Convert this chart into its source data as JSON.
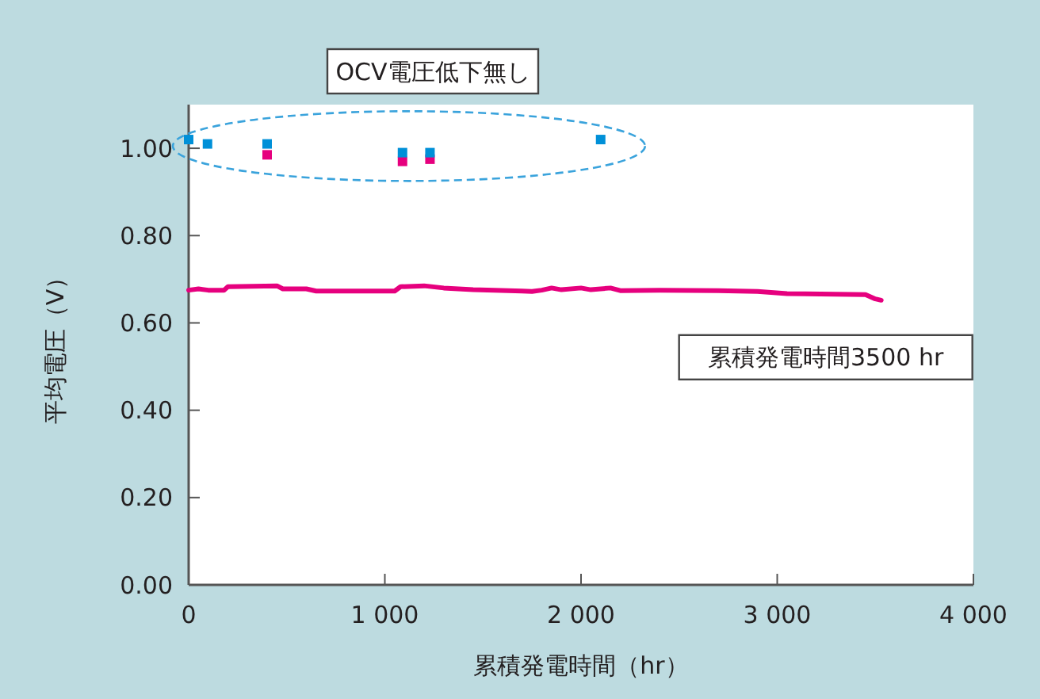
{
  "chart_data": {
    "type": "line",
    "xlabel": "累積発電時間（hr）",
    "ylabel": "平均電圧（V）",
    "xlim": [
      0,
      4000
    ],
    "xticks": [
      0,
      {
        "value": 1000,
        "label": "1 000"
      },
      {
        "value": 2000,
        "label": "2 000"
      },
      {
        "value": 3000,
        "label": "3 000"
      },
      {
        "value": 4000,
        "label": "4 000"
      }
    ],
    "ylim": [
      0,
      1.1
    ],
    "yticks": [
      {
        "value": 0,
        "label": "0.00"
      },
      {
        "value": 0.2,
        "label": "0.20"
      },
      {
        "value": 0.4,
        "label": "0.40"
      },
      {
        "value": 0.6,
        "label": "0.60"
      },
      {
        "value": 0.8,
        "label": "0.80"
      },
      {
        "value": 1,
        "label": "1.00"
      }
    ],
    "grid": false,
    "annotations": [
      "OCV電圧低下無し",
      "累積発電時間3500 hr"
    ],
    "series": [
      {
        "color": "#e6007e",
        "marker": "none",
        "line_style": "solid",
        "x": [
          0,
          50,
          100,
          180,
          200,
          450,
          480,
          600,
          650,
          1050,
          1080,
          1200,
          1300,
          1450,
          1700,
          1750,
          1800,
          1850,
          1900,
          2000,
          2050,
          2150,
          2200,
          2400,
          2700,
          2900,
          3050,
          3450,
          3500,
          3530
        ],
        "values": [
          0.675,
          0.678,
          0.675,
          0.675,
          0.683,
          0.685,
          0.678,
          0.678,
          0.673,
          0.673,
          0.683,
          0.685,
          0.68,
          0.676,
          0.673,
          0.672,
          0.675,
          0.68,
          0.676,
          0.68,
          0.676,
          0.68,
          0.674,
          0.675,
          0.674,
          0.672,
          0.667,
          0.665,
          0.655,
          0.652
        ]
      },
      {
        "type": "scatter",
        "color": "#e6007e",
        "marker": "square",
        "x": [
          400,
          1090,
          1230
        ],
        "values": [
          0.985,
          0.97,
          0.975
        ]
      },
      {
        "type": "scatter",
        "color": "#0090d8",
        "marker": "square",
        "x": [
          0,
          96,
          400,
          1090,
          1230,
          2100
        ],
        "values": [
          1.02,
          1.01,
          1.01,
          0.99,
          0.99,
          1.02
        ]
      }
    ]
  }
}
